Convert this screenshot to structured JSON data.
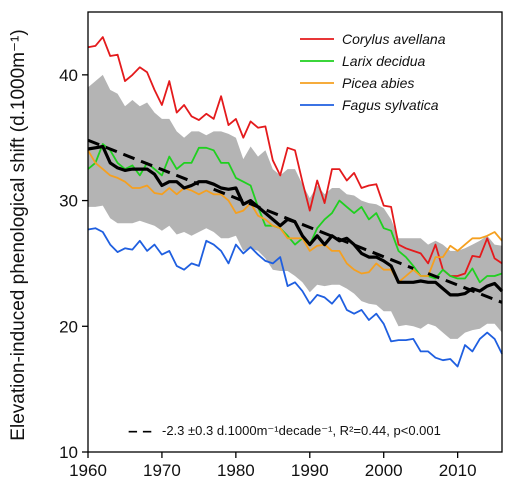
{
  "chart_data": {
    "type": "line",
    "title": "",
    "ylabel": "Elevation-induced phenological shift (d.1000m⁻¹)",
    "xlabel": "",
    "xlim": [
      1960,
      2016
    ],
    "ylim": [
      10,
      45
    ],
    "xticks": [
      "1960",
      "1970",
      "1980",
      "1990",
      "2000",
      "2010"
    ],
    "yticks": [
      "10",
      "20",
      "30",
      "40"
    ],
    "grid": false,
    "legend_position": "top-right",
    "series": [
      {
        "name": "Corylus avellana",
        "color": "#e41a1c",
        "x": [
          1960,
          1961,
          1962,
          1963,
          1964,
          1965,
          1966,
          1967,
          1968,
          1969,
          1970,
          1971,
          1972,
          1973,
          1974,
          1975,
          1976,
          1977,
          1978,
          1979,
          1980,
          1981,
          1982,
          1983,
          1984,
          1985,
          1986,
          1987,
          1988,
          1989,
          1990,
          1991,
          1992,
          1993,
          1994,
          1995,
          1996,
          1997,
          1998,
          1999,
          2000,
          2001,
          2002,
          2003,
          2004,
          2005,
          2006,
          2007,
          2008,
          2009,
          2010,
          2011,
          2012,
          2013,
          2014,
          2015,
          2016
        ],
        "y": [
          42.2,
          42.3,
          43.0,
          41.5,
          41.6,
          39.5,
          40.0,
          40.6,
          40.2,
          38.8,
          37.6,
          39.5,
          37.0,
          37.6,
          36.7,
          36.4,
          36.9,
          36.5,
          38.3,
          36.0,
          36.5,
          35.0,
          36.3,
          35.8,
          35.9,
          33.2,
          32.0,
          34.2,
          34.0,
          31.5,
          29.2,
          31.6,
          29.8,
          32.5,
          32.5,
          31.6,
          32.2,
          31.0,
          31.2,
          31.3,
          29.6,
          29.5,
          26.5,
          26.2,
          26.0,
          25.8,
          25.0,
          26.5,
          24.5,
          24.0,
          24.0,
          24.2,
          25.6,
          25.5,
          27.0,
          25.4,
          25.0
        ]
      },
      {
        "name": "Larix decidua",
        "color": "#1fd01f",
        "x": [
          1960,
          1961,
          1962,
          1963,
          1964,
          1965,
          1966,
          1967,
          1968,
          1969,
          1970,
          1971,
          1972,
          1973,
          1974,
          1975,
          1976,
          1977,
          1978,
          1979,
          1980,
          1981,
          1982,
          1983,
          1984,
          1985,
          1986,
          1987,
          1988,
          1989,
          1990,
          1991,
          1992,
          1993,
          1994,
          1995,
          1996,
          1997,
          1998,
          1999,
          2000,
          2001,
          2002,
          2003,
          2004,
          2005,
          2006,
          2007,
          2008,
          2009,
          2010,
          2011,
          2012,
          2013,
          2014,
          2015,
          2016
        ],
        "y": [
          32.5,
          33.0,
          34.5,
          34.0,
          33.0,
          32.5,
          32.8,
          32.0,
          33.0,
          32.5,
          32.0,
          33.5,
          32.5,
          33.0,
          33.0,
          34.2,
          34.2,
          34.0,
          33.0,
          33.0,
          31.8,
          31.5,
          31.2,
          29.5,
          28.0,
          28.0,
          27.8,
          27.2,
          26.5,
          27.0,
          26.5,
          27.8,
          28.5,
          29.0,
          30.0,
          29.5,
          29.0,
          29.5,
          28.5,
          29.0,
          27.8,
          27.6,
          26.0,
          25.5,
          24.8,
          24.0,
          24.0,
          23.8,
          24.5,
          24.0,
          23.8,
          23.8,
          24.6,
          23.5,
          24.0,
          24.0,
          24.2
        ]
      },
      {
        "name": "Picea abies",
        "color": "#f5a020",
        "x": [
          1960,
          1961,
          1962,
          1963,
          1964,
          1965,
          1966,
          1967,
          1968,
          1969,
          1970,
          1971,
          1972,
          1973,
          1974,
          1975,
          1976,
          1977,
          1978,
          1979,
          1980,
          1981,
          1982,
          1983,
          1984,
          1985,
          1986,
          1987,
          1988,
          1989,
          1990,
          1991,
          1992,
          1993,
          1994,
          1995,
          1996,
          1997,
          1998,
          1999,
          2000,
          2001,
          2002,
          2003,
          2004,
          2005,
          2006,
          2007,
          2008,
          2009,
          2010,
          2011,
          2012,
          2013,
          2014,
          2015,
          2016
        ],
        "y": [
          34.0,
          33.0,
          32.5,
          32.0,
          31.8,
          31.5,
          31.0,
          31.0,
          31.2,
          30.6,
          30.5,
          31.0,
          30.5,
          31.0,
          30.8,
          30.5,
          30.8,
          30.5,
          30.5,
          30.0,
          29.0,
          29.2,
          29.8,
          28.8,
          28.5,
          28.0,
          27.8,
          27.0,
          27.0,
          27.0,
          26.0,
          26.4,
          26.5,
          26.0,
          26.0,
          25.0,
          24.5,
          24.2,
          24.3,
          25.0,
          24.5,
          24.5,
          23.5,
          24.0,
          24.5,
          24.0,
          24.0,
          25.5,
          25.5,
          26.4,
          26.0,
          26.5,
          27.0,
          27.0,
          27.2,
          27.5,
          26.8
        ]
      },
      {
        "name": "Fagus sylvatica",
        "color": "#1f5fe0",
        "x": [
          1960,
          1961,
          1962,
          1963,
          1964,
          1965,
          1966,
          1967,
          1968,
          1969,
          1970,
          1971,
          1972,
          1973,
          1974,
          1975,
          1976,
          1977,
          1978,
          1979,
          1980,
          1981,
          1982,
          1983,
          1984,
          1985,
          1986,
          1987,
          1988,
          1989,
          1990,
          1991,
          1992,
          1993,
          1994,
          1995,
          1996,
          1997,
          1998,
          1999,
          2000,
          2001,
          2002,
          2003,
          2004,
          2005,
          2006,
          2007,
          2008,
          2009,
          2010,
          2011,
          2012,
          2013,
          2014,
          2015,
          2016
        ],
        "y": [
          27.7,
          27.8,
          27.5,
          26.5,
          25.9,
          26.2,
          26.1,
          26.8,
          26.0,
          26.5,
          25.7,
          26.0,
          24.8,
          24.5,
          25.0,
          24.8,
          26.8,
          26.5,
          26.0,
          25.0,
          26.5,
          25.8,
          26.3,
          25.7,
          25.2,
          25.0,
          25.5,
          23.2,
          23.5,
          22.8,
          21.8,
          22.5,
          22.3,
          21.8,
          22.5,
          21.3,
          21.0,
          21.3,
          20.5,
          21.0,
          20.2,
          18.8,
          18.9,
          18.9,
          19.0,
          18.0,
          18.0,
          17.5,
          17.3,
          17.4,
          16.8,
          18.5,
          18.0,
          19.0,
          19.5,
          19.0,
          17.8
        ]
      },
      {
        "name": "",
        "role": "mean",
        "color": "#000000",
        "x": [
          1960,
          1961,
          1962,
          1963,
          1964,
          1965,
          1966,
          1967,
          1968,
          1969,
          1970,
          1971,
          1972,
          1973,
          1974,
          1975,
          1976,
          1977,
          1978,
          1979,
          1980,
          1981,
          1982,
          1983,
          1984,
          1985,
          1986,
          1987,
          1988,
          1989,
          1990,
          1991,
          1992,
          1993,
          1994,
          1995,
          1996,
          1997,
          1998,
          1999,
          2000,
          2001,
          2002,
          2003,
          2004,
          2005,
          2006,
          2007,
          2008,
          2009,
          2010,
          2011,
          2012,
          2013,
          2014,
          2015,
          2016
        ],
        "y": [
          34.1,
          34.2,
          34.3,
          33.0,
          32.6,
          32.4,
          32.5,
          32.5,
          32.5,
          32.1,
          31.2,
          31.5,
          31.5,
          31.0,
          31.2,
          31.5,
          31.5,
          31.3,
          31.0,
          30.9,
          31.0,
          29.7,
          30.0,
          29.5,
          29.0,
          28.5,
          28.0,
          28.5,
          28.3,
          27.2,
          26.5,
          27.2,
          26.5,
          27.2,
          26.8,
          27.0,
          26.5,
          25.8,
          25.5,
          25.5,
          25.2,
          24.8,
          23.5,
          23.5,
          23.5,
          23.6,
          23.5,
          23.5,
          23.0,
          22.5,
          22.5,
          22.6,
          23.0,
          22.8,
          23.2,
          23.4,
          22.8
        ]
      },
      {
        "name": "",
        "role": "ci-upper",
        "x": [
          1960,
          1961,
          1962,
          1963,
          1964,
          1965,
          1966,
          1967,
          1968,
          1969,
          1970,
          1971,
          1972,
          1973,
          1974,
          1975,
          1976,
          1977,
          1978,
          1979,
          1980,
          1981,
          1982,
          1983,
          1984,
          1985,
          1986,
          1987,
          1988,
          1989,
          1990,
          1991,
          1992,
          1993,
          1994,
          1995,
          1996,
          1997,
          1998,
          1999,
          2000,
          2001,
          2002,
          2003,
          2004,
          2005,
          2006,
          2007,
          2008,
          2009,
          2010,
          2011,
          2012,
          2013,
          2014,
          2015,
          2016
        ],
        "y": [
          39.0,
          39.5,
          40.0,
          38.8,
          38.5,
          37.5,
          38.0,
          37.5,
          37.8,
          37.0,
          36.5,
          36.5,
          35.5,
          35.0,
          35.5,
          35.5,
          35.2,
          35.5,
          35.5,
          35.3,
          35.0,
          33.3,
          34.3,
          33.5,
          34.0,
          32.5,
          32.0,
          32.5,
          32.5,
          31.3,
          30.2,
          31.2,
          30.5,
          31.0,
          31.0,
          30.5,
          30.4,
          30.0,
          29.8,
          29.7,
          29.4,
          28.5,
          27.0,
          27.0,
          27.0,
          27.0,
          26.5,
          26.8,
          26.5,
          26.0,
          26.0,
          26.2,
          26.5,
          26.8,
          27.2,
          26.5,
          26.4
        ]
      },
      {
        "name": "",
        "role": "ci-lower",
        "x": [
          1960,
          1961,
          1962,
          1963,
          1964,
          1965,
          1966,
          1967,
          1968,
          1969,
          1970,
          1971,
          1972,
          1973,
          1974,
          1975,
          1976,
          1977,
          1978,
          1979,
          1980,
          1981,
          1982,
          1983,
          1984,
          1985,
          1986,
          1987,
          1988,
          1989,
          1990,
          1991,
          1992,
          1993,
          1994,
          1995,
          1996,
          1997,
          1998,
          1999,
          2000,
          2001,
          2002,
          2003,
          2004,
          2005,
          2006,
          2007,
          2008,
          2009,
          2010,
          2011,
          2012,
          2013,
          2014,
          2015,
          2016
        ],
        "y": [
          29.5,
          29.5,
          29.6,
          28.6,
          28.2,
          28.2,
          28.2,
          28.4,
          28.2,
          28.0,
          27.6,
          28.0,
          27.3,
          27.5,
          27.2,
          27.5,
          27.8,
          27.5,
          27.0,
          27.0,
          27.2,
          26.0,
          26.2,
          26.0,
          25.4,
          24.5,
          24.4,
          24.4,
          24.0,
          23.5,
          22.7,
          23.3,
          23.2,
          23.3,
          23.3,
          23.0,
          22.6,
          22.0,
          21.8,
          21.7,
          21.2,
          21.2,
          20.0,
          20.1,
          20.0,
          19.8,
          20.2,
          20.0,
          19.5,
          19.0,
          19.0,
          19.5,
          19.7,
          19.8,
          20.2,
          20.2,
          19.5
        ]
      }
    ],
    "trend_segments": [
      {
        "x": [
          1960,
          1975
        ],
        "y": [
          34.8,
          31.3
        ]
      },
      {
        "x": [
          1977,
          2004
        ],
        "y": [
          30.9,
          24.6
        ]
      },
      {
        "x": [
          2006,
          2016
        ],
        "y": [
          24.2,
          21.9
        ]
      }
    ],
    "annotation": {
      "dash": "– –",
      "text": "-2.3 ±0.3 d.1000m⁻¹decade⁻¹, R²=0.44, p<0.001"
    }
  }
}
